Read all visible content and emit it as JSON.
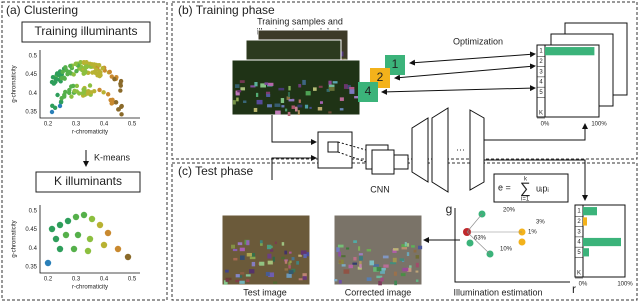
{
  "panel_a": {
    "title": "(a) Clustering",
    "training_label": "Training illuminants",
    "kmeans_label": "K-means",
    "k_label": "K illuminants",
    "plot1": {
      "y_label": "g-chromaticity",
      "x_label": "r-chromaticity",
      "yticks": [
        "0.5",
        "0.45",
        "0.4",
        "0.35"
      ],
      "xticks": [
        "0.2",
        "0.3",
        "0.4",
        "0.5"
      ]
    },
    "plot2": {
      "y_label": "g-chromaticity",
      "x_label": "r-chromaticity",
      "yticks": [
        "0.5",
        "0.45",
        "0.4",
        "0.35"
      ],
      "xticks": [
        "0.2",
        "0.3",
        "0.4",
        "0.5"
      ]
    }
  },
  "panel_b": {
    "title": "(b) Training phase",
    "samples_label": [
      "Training samples and",
      "illuminant class labels"
    ],
    "sample_classes": [
      "1",
      "2",
      "4"
    ],
    "optimization_label": "Optimization",
    "class_labels": [
      "1",
      "2",
      "3",
      "4",
      "5",
      "K"
    ],
    "axis_labels": [
      "0%",
      "100%"
    ]
  },
  "network": {
    "label": "CNN"
  },
  "panel_c": {
    "title": "(c) Test phase",
    "test_image_label": "Test image",
    "corrected_image_label": "Corrected image",
    "estimation_label": "Illumination estimation",
    "formula": {
      "lhs": "e =",
      "sum": "∑",
      "upper": "k",
      "lower": "i=1",
      "term": "uᵢpᵢ"
    },
    "point_labels": [
      "20%",
      "3%",
      "1%",
      "63%",
      "10%"
    ],
    "axis_g": "g",
    "axis_r": "r",
    "class_labels": [
      "1",
      "2",
      "3",
      "4",
      "5",
      "K"
    ],
    "axis_labels": [
      "0%",
      "100%"
    ]
  }
}
